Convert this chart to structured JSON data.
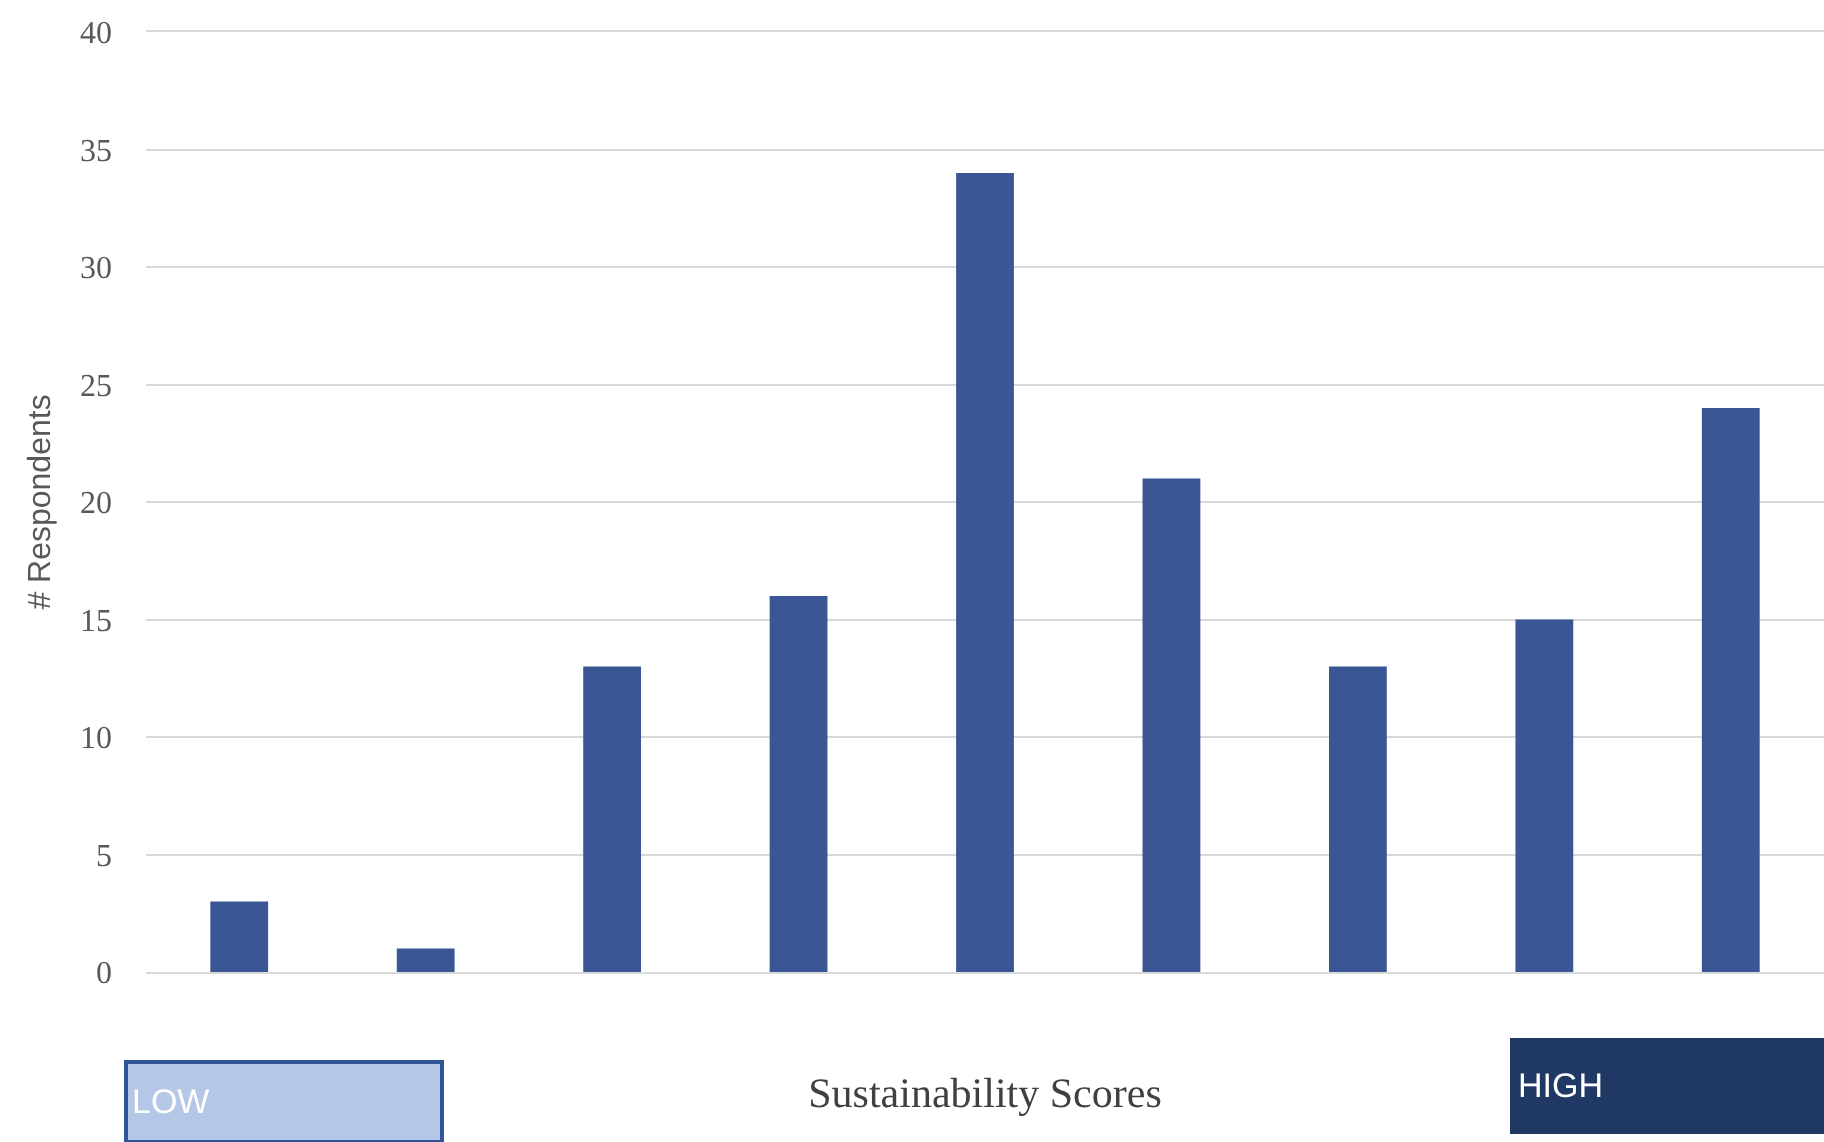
{
  "chart_data": {
    "type": "bar",
    "categories": [
      null,
      null,
      null,
      null,
      null,
      null,
      null,
      null,
      null
    ],
    "values": [
      3,
      1,
      13,
      16,
      34,
      21,
      13,
      15,
      24
    ],
    "color": "#3a5694",
    "xlabel": "Sustainability Scores",
    "ylabel": "# Respondents",
    "ylim": [
      0,
      40
    ],
    "yticks": [
      0,
      5,
      10,
      15,
      20,
      25,
      30,
      35,
      40
    ],
    "grid": "y",
    "tick_labels": "y",
    "annotations": [
      "LOW",
      "HIGH"
    ]
  }
}
